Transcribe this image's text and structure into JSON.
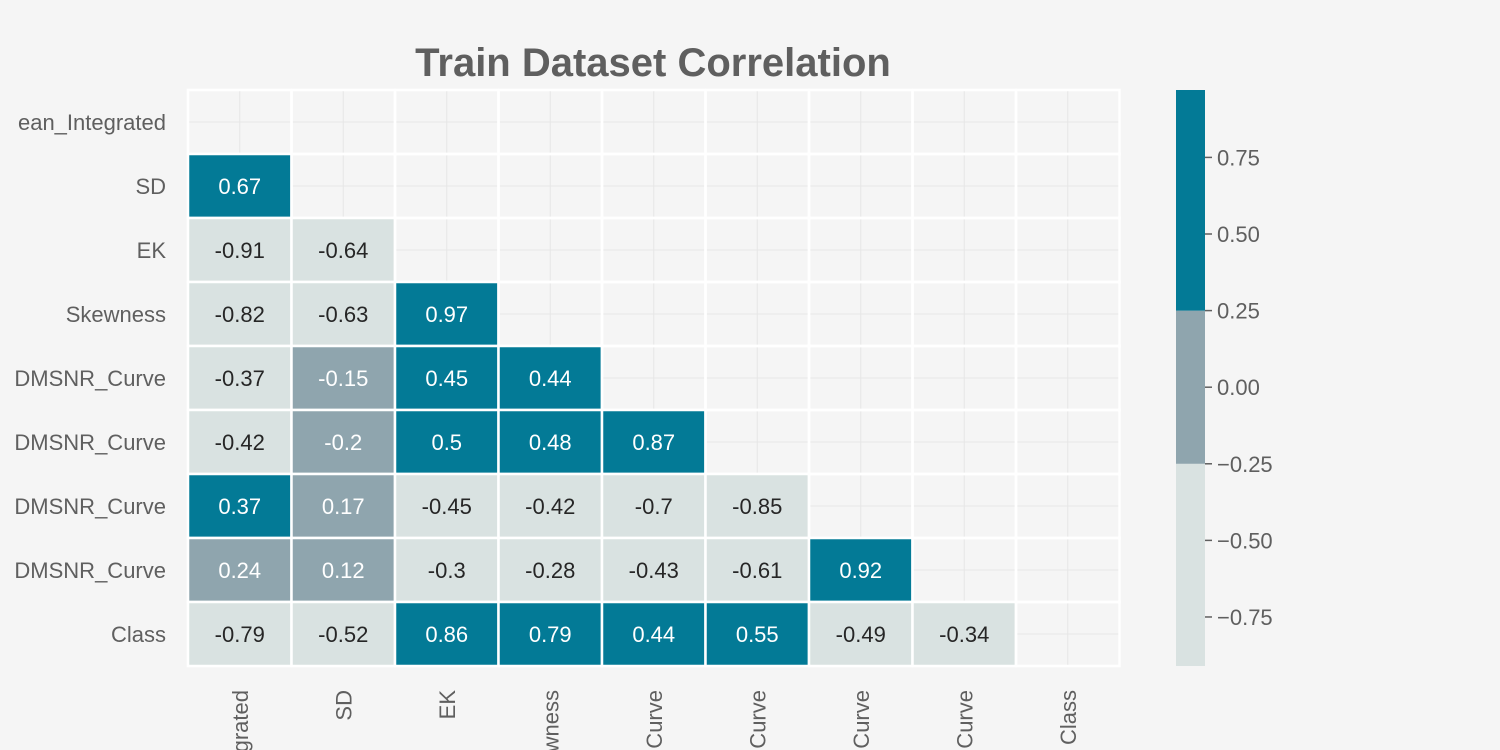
{
  "chart_data": {
    "type": "heatmap",
    "title": "Train Dataset Correlation",
    "row_labels": [
      "Mean_Integrated",
      "SD",
      "EK",
      "Skewness",
      "Mean_DMSNR_Curve",
      "SD_DMSNR_Curve",
      "EK_DMSNR_Curve",
      "Skewness_DMSNR_Curve",
      "Class"
    ],
    "col_labels": [
      "Mean_Integrated",
      "SD",
      "EK",
      "Skewness",
      "Mean_DMSNR_Curve",
      "SD_DMSNR_Curve",
      "EK_DMSNR_Curve",
      "Skewness_DMSNR_Curve",
      "Class"
    ],
    "row_labels_visible": [
      "ean_Integrated",
      "SD",
      "EK",
      "Skewness",
      "DMSNR_Curve",
      "DMSNR_Curve",
      "DMSNR_Curve",
      "DMSNR_Curve",
      "Class"
    ],
    "col_labels_visible": [
      "grated",
      "SD",
      "EK",
      "wness",
      "Curve",
      "Curve",
      "Curve",
      "Curve",
      "Class"
    ],
    "matrix": [
      [
        null,
        null,
        null,
        null,
        null,
        null,
        null,
        null,
        null
      ],
      [
        0.67,
        null,
        null,
        null,
        null,
        null,
        null,
        null,
        null
      ],
      [
        -0.91,
        -0.64,
        null,
        null,
        null,
        null,
        null,
        null,
        null
      ],
      [
        -0.82,
        -0.63,
        0.97,
        null,
        null,
        null,
        null,
        null,
        null
      ],
      [
        -0.37,
        -0.15,
        0.45,
        0.44,
        null,
        null,
        null,
        null,
        null
      ],
      [
        -0.42,
        -0.2,
        0.5,
        0.48,
        0.87,
        null,
        null,
        null,
        null
      ],
      [
        0.37,
        0.17,
        -0.45,
        -0.42,
        -0.7,
        -0.85,
        null,
        null,
        null
      ],
      [
        0.24,
        0.12,
        -0.3,
        -0.28,
        -0.43,
        -0.61,
        0.92,
        null,
        null
      ],
      [
        -0.79,
        -0.52,
        0.86,
        0.79,
        0.44,
        0.55,
        -0.49,
        -0.34,
        null
      ]
    ],
    "mask": "upper-triangle-including-diagonal",
    "colormap": {
      "colors": [
        "#d9e2e1",
        "#8fa5ae",
        "#037a96"
      ],
      "boundaries": [
        -0.91,
        -0.25,
        0.25,
        0.97
      ]
    },
    "colorbar": {
      "ticks": [
        0.75,
        0.5,
        0.25,
        0.0,
        -0.25,
        -0.5,
        -0.75
      ],
      "tick_labels": [
        "0.75",
        "0.50",
        "0.25",
        "0.00",
        "−0.25",
        "−0.50",
        "−0.75"
      ],
      "range": [
        -0.91,
        0.97
      ]
    },
    "grid": true
  }
}
